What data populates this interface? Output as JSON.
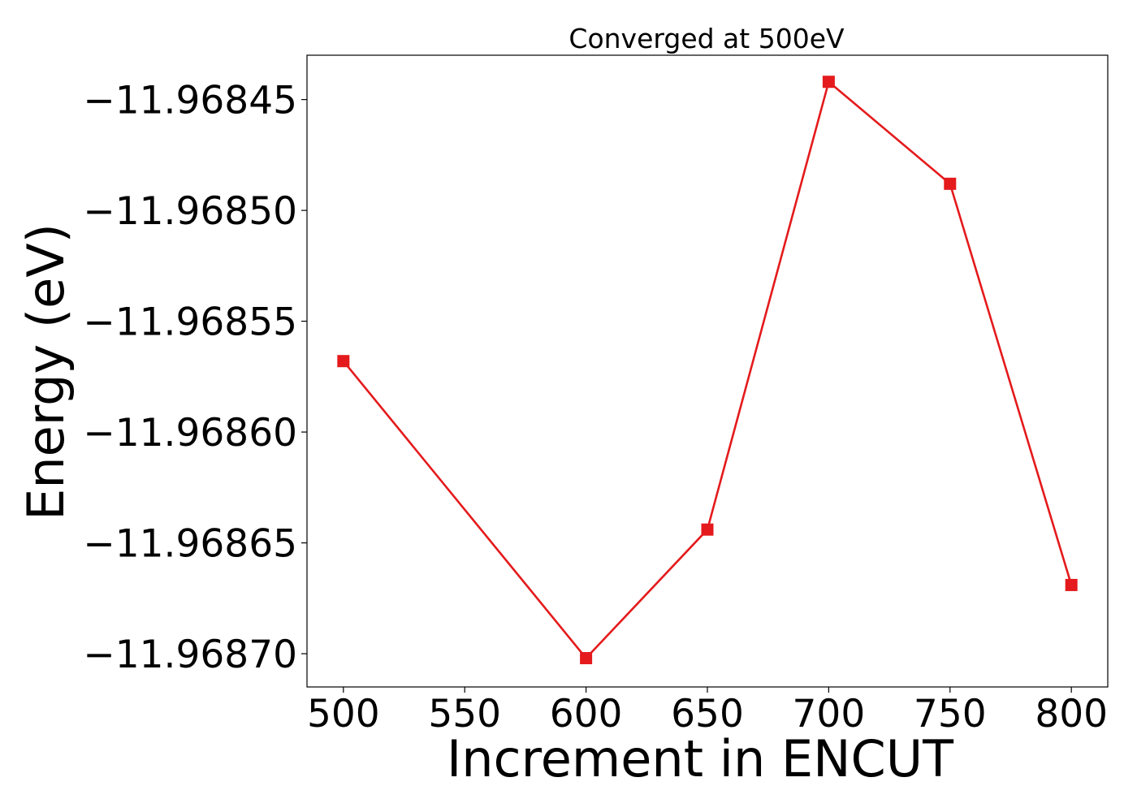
{
  "chart_data": {
    "type": "line",
    "title": "Converged at 500eV",
    "xlabel": "Increment in ENCUT",
    "ylabel": "Energy (eV)",
    "x": [
      500,
      600,
      650,
      700,
      750,
      800
    ],
    "series": [
      {
        "values": [
          -11.968568,
          -11.968702,
          -11.968644,
          -11.968442,
          -11.968488,
          -11.968669
        ],
        "color": "#e41a1c",
        "marker": "square"
      }
    ],
    "xticks": [
      500,
      550,
      600,
      650,
      700,
      750,
      800
    ],
    "xtick_labels": [
      "500",
      "550",
      "600",
      "650",
      "700",
      "750",
      "800"
    ],
    "yticks": [
      -11.96845,
      -11.9685,
      -11.96855,
      -11.9686,
      -11.96865,
      -11.9687
    ],
    "ytick_labels": [
      "−11.96845",
      "−11.96850",
      "−11.96855",
      "−11.96860",
      "−11.96865",
      "−11.96870"
    ],
    "xlim": [
      485,
      815
    ],
    "ylim": [
      -11.968715,
      -11.96843
    ],
    "grid": false,
    "legend": "none"
  }
}
